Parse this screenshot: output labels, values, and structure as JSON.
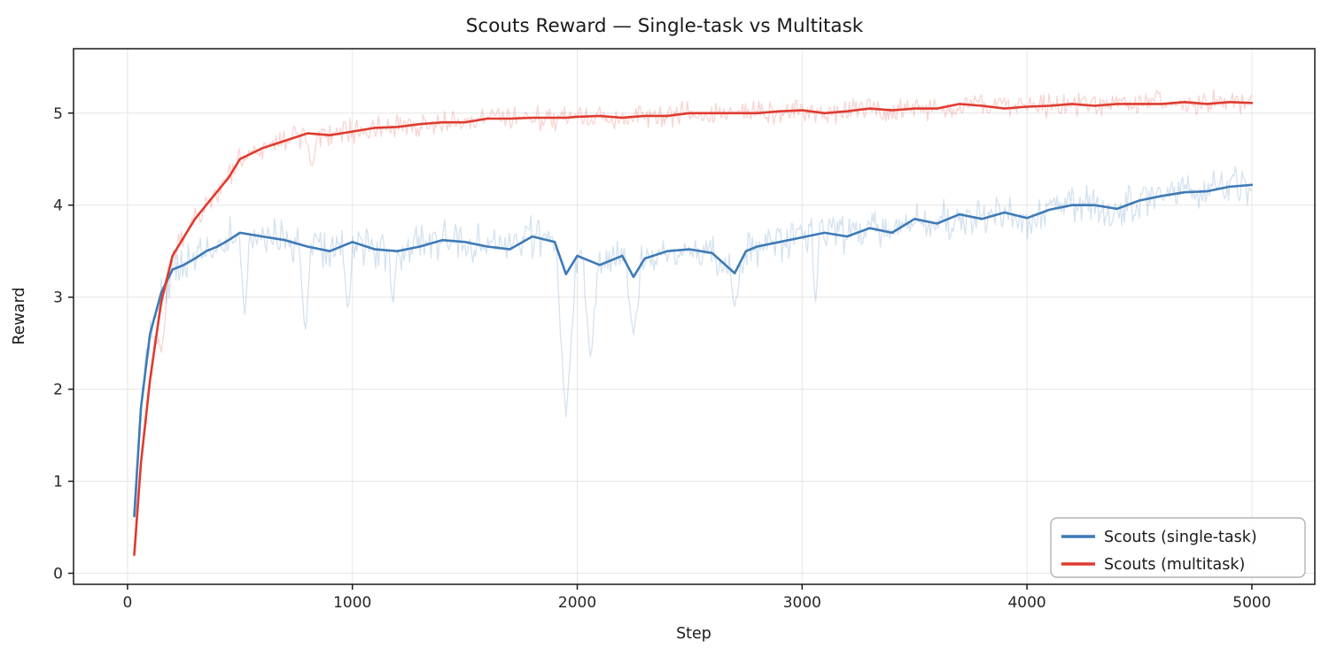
{
  "figure": {
    "background": "#ffffff"
  },
  "chart_data": {
    "type": "line",
    "title": "Scouts Reward — Single-task vs Multitask",
    "xlabel": "Step",
    "ylabel": "Reward",
    "xlim": [
      -240,
      5280
    ],
    "ylim": [
      -0.12,
      5.7
    ],
    "xticks": [
      0,
      1000,
      2000,
      3000,
      4000,
      5000
    ],
    "yticks": [
      0,
      1,
      2,
      3,
      4,
      5
    ],
    "grid": true,
    "legend_position": "lower right",
    "x": [
      30,
      60,
      100,
      150,
      200,
      250,
      300,
      350,
      400,
      450,
      500,
      600,
      700,
      800,
      900,
      1000,
      1100,
      1200,
      1300,
      1400,
      1500,
      1600,
      1700,
      1800,
      1900,
      1950,
      2000,
      2100,
      2200,
      2250,
      2300,
      2400,
      2500,
      2600,
      2700,
      2750,
      2800,
      2900,
      3000,
      3100,
      3200,
      3300,
      3400,
      3500,
      3600,
      3700,
      3800,
      3900,
      4000,
      4100,
      4200,
      4300,
      4400,
      4500,
      4600,
      4700,
      4800,
      4900,
      5000
    ],
    "series": [
      {
        "name": "Scouts (single-task)",
        "color": "#3d7ab6",
        "raw_noise": 0.16,
        "raw_opacity": 0.22,
        "values": [
          0.62,
          1.8,
          2.6,
          3.05,
          3.3,
          3.35,
          3.42,
          3.5,
          3.55,
          3.62,
          3.7,
          3.66,
          3.62,
          3.55,
          3.5,
          3.6,
          3.52,
          3.5,
          3.55,
          3.62,
          3.6,
          3.55,
          3.52,
          3.66,
          3.6,
          3.25,
          3.45,
          3.35,
          3.45,
          3.22,
          3.42,
          3.5,
          3.52,
          3.48,
          3.26,
          3.5,
          3.55,
          3.6,
          3.65,
          3.7,
          3.66,
          3.75,
          3.7,
          3.85,
          3.8,
          3.9,
          3.85,
          3.92,
          3.86,
          3.95,
          4.0,
          4.0,
          3.96,
          4.05,
          4.1,
          4.14,
          4.15,
          4.2,
          4.22
        ],
        "raw_dips": [
          {
            "x": 30,
            "y": 0.2,
            "w": 14
          },
          {
            "x": 520,
            "y": 2.75,
            "w": 20
          },
          {
            "x": 790,
            "y": 2.6,
            "w": 25
          },
          {
            "x": 980,
            "y": 2.82,
            "w": 20
          },
          {
            "x": 1180,
            "y": 2.9,
            "w": 18
          },
          {
            "x": 1950,
            "y": 1.7,
            "w": 40
          },
          {
            "x": 2060,
            "y": 2.3,
            "w": 30
          },
          {
            "x": 2250,
            "y": 2.6,
            "w": 32
          },
          {
            "x": 2700,
            "y": 2.9,
            "w": 24
          },
          {
            "x": 3060,
            "y": 2.95,
            "w": 18
          }
        ]
      },
      {
        "name": "Scouts (multitask)",
        "color": "#df3b2f",
        "raw_noise": 0.1,
        "raw_opacity": 0.22,
        "values": [
          0.2,
          1.2,
          2.1,
          2.95,
          3.45,
          3.65,
          3.85,
          4.0,
          4.15,
          4.3,
          4.5,
          4.62,
          4.7,
          4.78,
          4.76,
          4.8,
          4.84,
          4.85,
          4.88,
          4.9,
          4.9,
          4.94,
          4.94,
          4.95,
          4.95,
          4.95,
          4.96,
          4.97,
          4.95,
          4.96,
          4.97,
          4.97,
          5.0,
          5.0,
          5.0,
          5.0,
          5.0,
          5.02,
          5.03,
          5.0,
          5.02,
          5.05,
          5.03,
          5.05,
          5.05,
          5.1,
          5.08,
          5.05,
          5.07,
          5.08,
          5.1,
          5.08,
          5.1,
          5.1,
          5.1,
          5.12,
          5.1,
          5.12,
          5.11
        ],
        "raw_dips": [
          {
            "x": 30,
            "y": 0.18,
            "w": 14
          },
          {
            "x": 150,
            "y": 2.4,
            "w": 28
          },
          {
            "x": 820,
            "y": 4.4,
            "w": 22
          }
        ]
      }
    ]
  },
  "legend": {
    "items": [
      {
        "label": "Scouts (single-task)"
      },
      {
        "label": "Scouts (multitask)"
      }
    ]
  }
}
